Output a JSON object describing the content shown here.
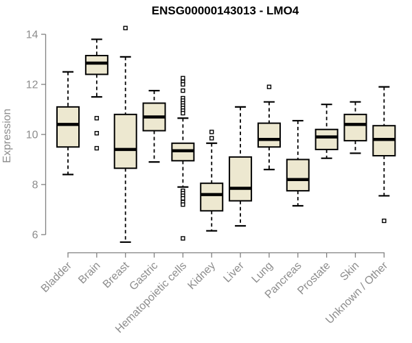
{
  "title": "ENSG00000143013 - LMO4",
  "colors": {
    "box_fill": "#EDE8D0",
    "box_stroke": "#000000",
    "median_color": "#000000",
    "whisker_color": "#000000",
    "outlier_fill": "#FFFFFF",
    "axis_color": "#7F7F7F",
    "label_color": "#8C8C8C",
    "title_color": "#000000",
    "background": "#FFFFFF"
  },
  "chart_data": {
    "type": "boxplot",
    "title": "ENSG00000143013 - LMO4",
    "xlabel": "",
    "ylabel": "Expression",
    "ylim": [
      5.5,
      14.5
    ],
    "yticks": [
      6,
      8,
      10,
      12,
      14
    ],
    "grid": false,
    "legend": "none",
    "categories": [
      "Bladder",
      "Brain",
      "Breast",
      "Gastric",
      "Hematopoietic cells",
      "Kidney",
      "Liver",
      "Lung",
      "Pancreas",
      "Prostate",
      "Skin",
      "Unknown / Other"
    ],
    "series": [
      {
        "category": "Bladder",
        "whisker_low": 8.4,
        "q1": 9.5,
        "median": 10.4,
        "q3": 11.1,
        "whisker_high": 12.5,
        "outliers": []
      },
      {
        "category": "Brain",
        "whisker_low": 11.5,
        "q1": 12.4,
        "median": 12.85,
        "q3": 13.15,
        "whisker_high": 13.8,
        "outliers": [
          10.65,
          10.05,
          9.45
        ]
      },
      {
        "category": "Breast",
        "whisker_low": 5.7,
        "q1": 8.65,
        "median": 9.4,
        "q3": 10.8,
        "whisker_high": 13.1,
        "outliers": [
          14.25
        ]
      },
      {
        "category": "Gastric",
        "whisker_low": 8.9,
        "q1": 10.15,
        "median": 10.7,
        "q3": 11.25,
        "whisker_high": 11.75,
        "outliers": []
      },
      {
        "category": "Hematopoietic cells",
        "whisker_low": 7.9,
        "q1": 8.95,
        "median": 9.35,
        "q3": 9.65,
        "whisker_high": 10.65,
        "outliers": [
          12.25,
          12.1,
          12.0,
          11.75,
          11.45,
          11.35,
          11.25,
          11.15,
          11.05,
          10.95,
          10.85,
          7.75,
          7.65,
          7.55,
          7.45,
          7.3,
          7.2,
          5.85
        ]
      },
      {
        "category": "Kidney",
        "whisker_low": 6.15,
        "q1": 6.95,
        "median": 7.6,
        "q3": 8.05,
        "whisker_high": 9.65,
        "outliers": [
          10.1,
          9.85
        ]
      },
      {
        "category": "Liver",
        "whisker_low": 6.35,
        "q1": 7.35,
        "median": 7.85,
        "q3": 9.1,
        "whisker_high": 11.1,
        "outliers": []
      },
      {
        "category": "Lung",
        "whisker_low": 8.6,
        "q1": 9.5,
        "median": 9.8,
        "q3": 10.45,
        "whisker_high": 11.3,
        "outliers": [
          11.9
        ]
      },
      {
        "category": "Pancreas",
        "whisker_low": 7.15,
        "q1": 7.75,
        "median": 8.2,
        "q3": 9.0,
        "whisker_high": 10.55,
        "outliers": []
      },
      {
        "category": "Prostate",
        "whisker_low": 9.05,
        "q1": 9.4,
        "median": 9.9,
        "q3": 10.2,
        "whisker_high": 11.2,
        "outliers": []
      },
      {
        "category": "Skin",
        "whisker_low": 9.25,
        "q1": 9.75,
        "median": 10.4,
        "q3": 10.8,
        "whisker_high": 11.3,
        "outliers": []
      },
      {
        "category": "Unknown / Other",
        "whisker_low": 7.55,
        "q1": 9.15,
        "median": 9.8,
        "q3": 10.35,
        "whisker_high": 11.9,
        "outliers": [
          6.55
        ]
      }
    ]
  }
}
